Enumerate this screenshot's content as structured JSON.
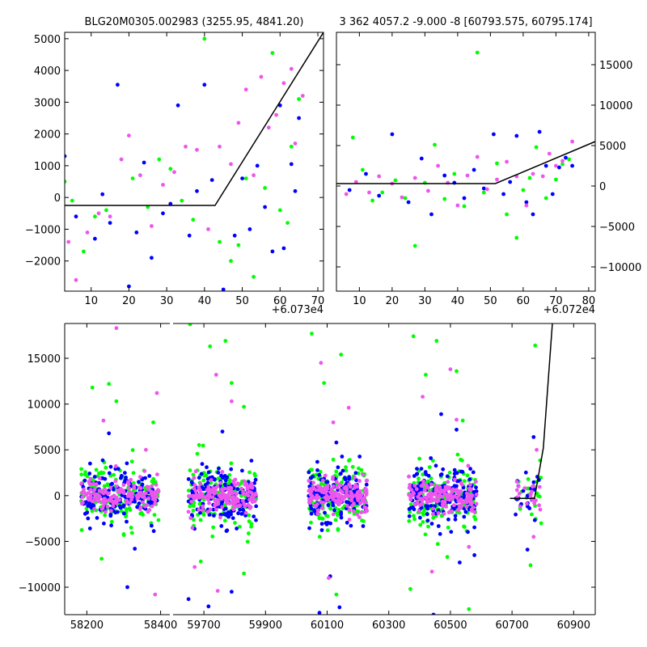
{
  "chart_data": [
    {
      "type": "scatter",
      "title": "BLG20M0305.002983 (3255.95, 4841.20)",
      "xlabel": "",
      "ylabel": "",
      "x_offset_label": "+6.073e4",
      "xlim": [
        60733,
        60801.5
      ],
      "ylim": [
        -2950,
        5200
      ],
      "xticks": [
        10,
        20,
        30,
        40,
        50,
        60,
        70
      ],
      "yticks": [
        -2000,
        -1000,
        0,
        1000,
        2000,
        3000,
        4000,
        5000
      ],
      "series_colors": [
        "#0000ff",
        "#00ff00",
        "#ee55ee"
      ],
      "model_line": [
        [
          60733,
          -250
        ],
        [
          60772.8,
          -250
        ],
        [
          60801.5,
          5200
        ]
      ],
      "series": [
        {
          "color": "#0000ff",
          "x": [
            60733,
            60736,
            60741,
            60743,
            60745,
            60747,
            60750,
            60752,
            60754,
            60756,
            60759,
            60761,
            60763,
            60766,
            60768,
            60770,
            60772,
            60775,
            60778,
            60780,
            60782,
            60784,
            60786,
            60788,
            60790,
            60791,
            60793,
            60794,
            60795
          ],
          "y": [
            1300,
            -600,
            -1300,
            100,
            -800,
            3550,
            -2800,
            -1100,
            1100,
            -1900,
            -500,
            -200,
            2900,
            -1200,
            200,
            3550,
            550,
            -2900,
            -1200,
            600,
            -1000,
            1000,
            -300,
            -1700,
            2900,
            -1600,
            1050,
            200,
            2500
          ]
        },
        {
          "color": "#00ff00",
          "x": [
            60733,
            60735,
            60738,
            60741,
            60744,
            60748,
            60751,
            60755,
            60758,
            60761,
            60764,
            60767,
            60770,
            60774,
            60777,
            60779,
            60781,
            60783,
            60786,
            60788,
            60790,
            60792,
            60793,
            60795
          ],
          "y": [
            500,
            -100,
            -1700,
            -600,
            -400,
            1200,
            600,
            -300,
            1200,
            900,
            -100,
            -700,
            5000,
            -1400,
            -2000,
            -1500,
            600,
            -2500,
            300,
            4550,
            -400,
            -800,
            1600,
            3100
          ]
        },
        {
          "color": "#ee55ee",
          "x": [
            60734,
            60736,
            60739,
            60742,
            60745,
            60748,
            60750,
            60753,
            60756,
            60759,
            60762,
            60765,
            60768,
            60771,
            60774,
            60777,
            60779,
            60781,
            60783,
            60785,
            60787,
            60789,
            60791,
            60793,
            60794,
            60796
          ],
          "y": [
            -1400,
            -2600,
            -1100,
            -500,
            -600,
            1200,
            1950,
            700,
            -900,
            400,
            800,
            1600,
            1500,
            -1000,
            1600,
            1050,
            2350,
            3400,
            700,
            3800,
            2200,
            2600,
            3600,
            4050,
            1700,
            3200
          ]
        }
      ]
    },
    {
      "type": "scatter",
      "title": "3 362 4057.2 -9.000 -8 [60793.575, 60795.174]",
      "xlabel": "",
      "ylabel": "",
      "x_offset_label": "+6.072e4",
      "xlim": [
        60723,
        60802
      ],
      "ylim": [
        -13000,
        19000
      ],
      "xticks": [
        10,
        20,
        30,
        40,
        50,
        60,
        70,
        80
      ],
      "yticks": [
        -10000,
        -5000,
        0,
        5000,
        10000,
        15000
      ],
      "series_colors": [
        "#0000ff",
        "#00ff00",
        "#ee55ee"
      ],
      "model_line": [
        [
          60723,
          300
        ],
        [
          60771.5,
          300
        ],
        [
          60802,
          5500
        ]
      ],
      "series": [
        {
          "color": "#0000ff",
          "x": [
            60727,
            60732,
            60736,
            60740,
            60745,
            60749,
            60752,
            60756,
            60759,
            60762,
            60765,
            60768,
            60771,
            60774,
            60776,
            60778,
            60781,
            60783,
            60785,
            60787,
            60789,
            60791,
            60793,
            60795
          ],
          "y": [
            -500,
            1500,
            -1200,
            6400,
            -2000,
            3400,
            -3500,
            1300,
            400,
            -1500,
            2000,
            -300,
            6400,
            -1000,
            500,
            6200,
            -2000,
            -3500,
            6700,
            2500,
            -1000,
            2300,
            3500,
            2500
          ]
        },
        {
          "color": "#00ff00",
          "x": [
            60728,
            60731,
            60734,
            60737,
            60741,
            60744,
            60747,
            60750,
            60753,
            60756,
            60759,
            60762,
            60766,
            60768,
            60772,
            60775,
            60778,
            60780,
            60782,
            60784,
            60787,
            60790,
            60792,
            60794
          ],
          "y": [
            6000,
            2000,
            -1800,
            -800,
            700,
            -1500,
            -7400,
            400,
            5100,
            -1600,
            1500,
            -2500,
            16500,
            -800,
            2800,
            -3500,
            -6400,
            -500,
            1000,
            4800,
            -1500,
            800,
            2700,
            3300
          ]
        },
        {
          "color": "#ee55ee",
          "x": [
            60726,
            60729,
            60733,
            60736,
            60740,
            60743,
            60747,
            60751,
            60754,
            60757,
            60760,
            60763,
            60766,
            60769,
            60772,
            60775,
            60778,
            60781,
            60783,
            60786,
            60788,
            60790,
            60792,
            60795
          ],
          "y": [
            -1000,
            500,
            -800,
            1200,
            300,
            -1400,
            1000,
            -600,
            2500,
            400,
            -2400,
            1300,
            3600,
            -400,
            800,
            3000,
            1200,
            -2400,
            1500,
            1200,
            4000,
            2500,
            3100,
            5500
          ]
        }
      ]
    },
    {
      "type": "scatter",
      "title": "",
      "xlabel": "",
      "ylabel": "",
      "broken_x_axis": true,
      "xlim_segments": [
        [
          58140,
          58425
        ],
        [
          59600,
          60970
        ]
      ],
      "ylim": [
        -13000,
        18800
      ],
      "xticks": [
        58200,
        58400,
        59700,
        59900,
        60100,
        60300,
        60500,
        60700,
        60900
      ],
      "yticks": [
        -10000,
        -5000,
        0,
        5000,
        10000,
        15000
      ],
      "series_colors": [
        "#0000ff",
        "#00ff00",
        "#ee55ee"
      ],
      "season_x_ranges": [
        [
          58185,
          58395
        ],
        [
          59650,
          59870
        ],
        [
          60040,
          60230
        ],
        [
          60365,
          60585
        ],
        [
          60710,
          60795
        ]
      ],
      "model_line": [
        [
          60693,
          -300
        ],
        [
          60773,
          -300
        ],
        [
          60801.5,
          5200
        ],
        [
          60831,
          18800
        ]
      ],
      "series": [
        {
          "color": "#0000ff",
          "spread": 1500,
          "outliers": [
            [
              58310,
              -10000
            ],
            [
              58330,
              -5800
            ],
            [
              59650,
              -11300
            ],
            [
              59715,
              -12100
            ],
            [
              59790,
              -10500
            ],
            [
              60075,
              -12800
            ],
            [
              60110,
              -8800
            ],
            [
              60140,
              -12200
            ],
            [
              60445,
              -13000
            ],
            [
              60530,
              -7300
            ],
            [
              60578,
              -6500
            ],
            [
              60750,
              -5900
            ],
            [
              58260,
              6800
            ],
            [
              59760,
              7000
            ],
            [
              60130,
              5800
            ],
            [
              60470,
              8900
            ],
            [
              60520,
              7200
            ],
            [
              60770,
              6400
            ]
          ]
        },
        {
          "color": "#00ff00",
          "spread": 1700,
          "outliers": [
            [
              58215,
              11800
            ],
            [
              58260,
              12200
            ],
            [
              58280,
              10300
            ],
            [
              58380,
              8000
            ],
            [
              59655,
              18700
            ],
            [
              59720,
              16300
            ],
            [
              59770,
              16900
            ],
            [
              59790,
              12300
            ],
            [
              59830,
              9700
            ],
            [
              60050,
              17700
            ],
            [
              60090,
              12300
            ],
            [
              60145,
              15400
            ],
            [
              60380,
              17400
            ],
            [
              60420,
              13200
            ],
            [
              60455,
              16900
            ],
            [
              60520,
              13600
            ],
            [
              60540,
              8200
            ],
            [
              60775,
              16400
            ],
            [
              59690,
              -7200
            ],
            [
              59830,
              -8500
            ],
            [
              60130,
              -10800
            ],
            [
              60370,
              -10200
            ],
            [
              60490,
              -6700
            ],
            [
              60560,
              -12400
            ],
            [
              60760,
              -7600
            ],
            [
              58240,
              -6900
            ],
            [
              58300,
              -4200
            ]
          ]
        },
        {
          "color": "#ee55ee",
          "spread": 1400,
          "outliers": [
            [
              58280,
              18300
            ],
            [
              58245,
              8200
            ],
            [
              58390,
              11200
            ],
            [
              58360,
              5000
            ],
            [
              59740,
              13200
            ],
            [
              59790,
              10300
            ],
            [
              60080,
              14500
            ],
            [
              60120,
              8000
            ],
            [
              60170,
              9600
            ],
            [
              60410,
              10800
            ],
            [
              60500,
              13800
            ],
            [
              60520,
              8300
            ],
            [
              60780,
              5000
            ],
            [
              58385,
              -10800
            ],
            [
              59745,
              -10400
            ],
            [
              59670,
              -7800
            ],
            [
              60105,
              -9000
            ],
            [
              60440,
              -8300
            ],
            [
              60560,
              -5600
            ],
            [
              60770,
              -4500
            ]
          ]
        }
      ]
    }
  ]
}
